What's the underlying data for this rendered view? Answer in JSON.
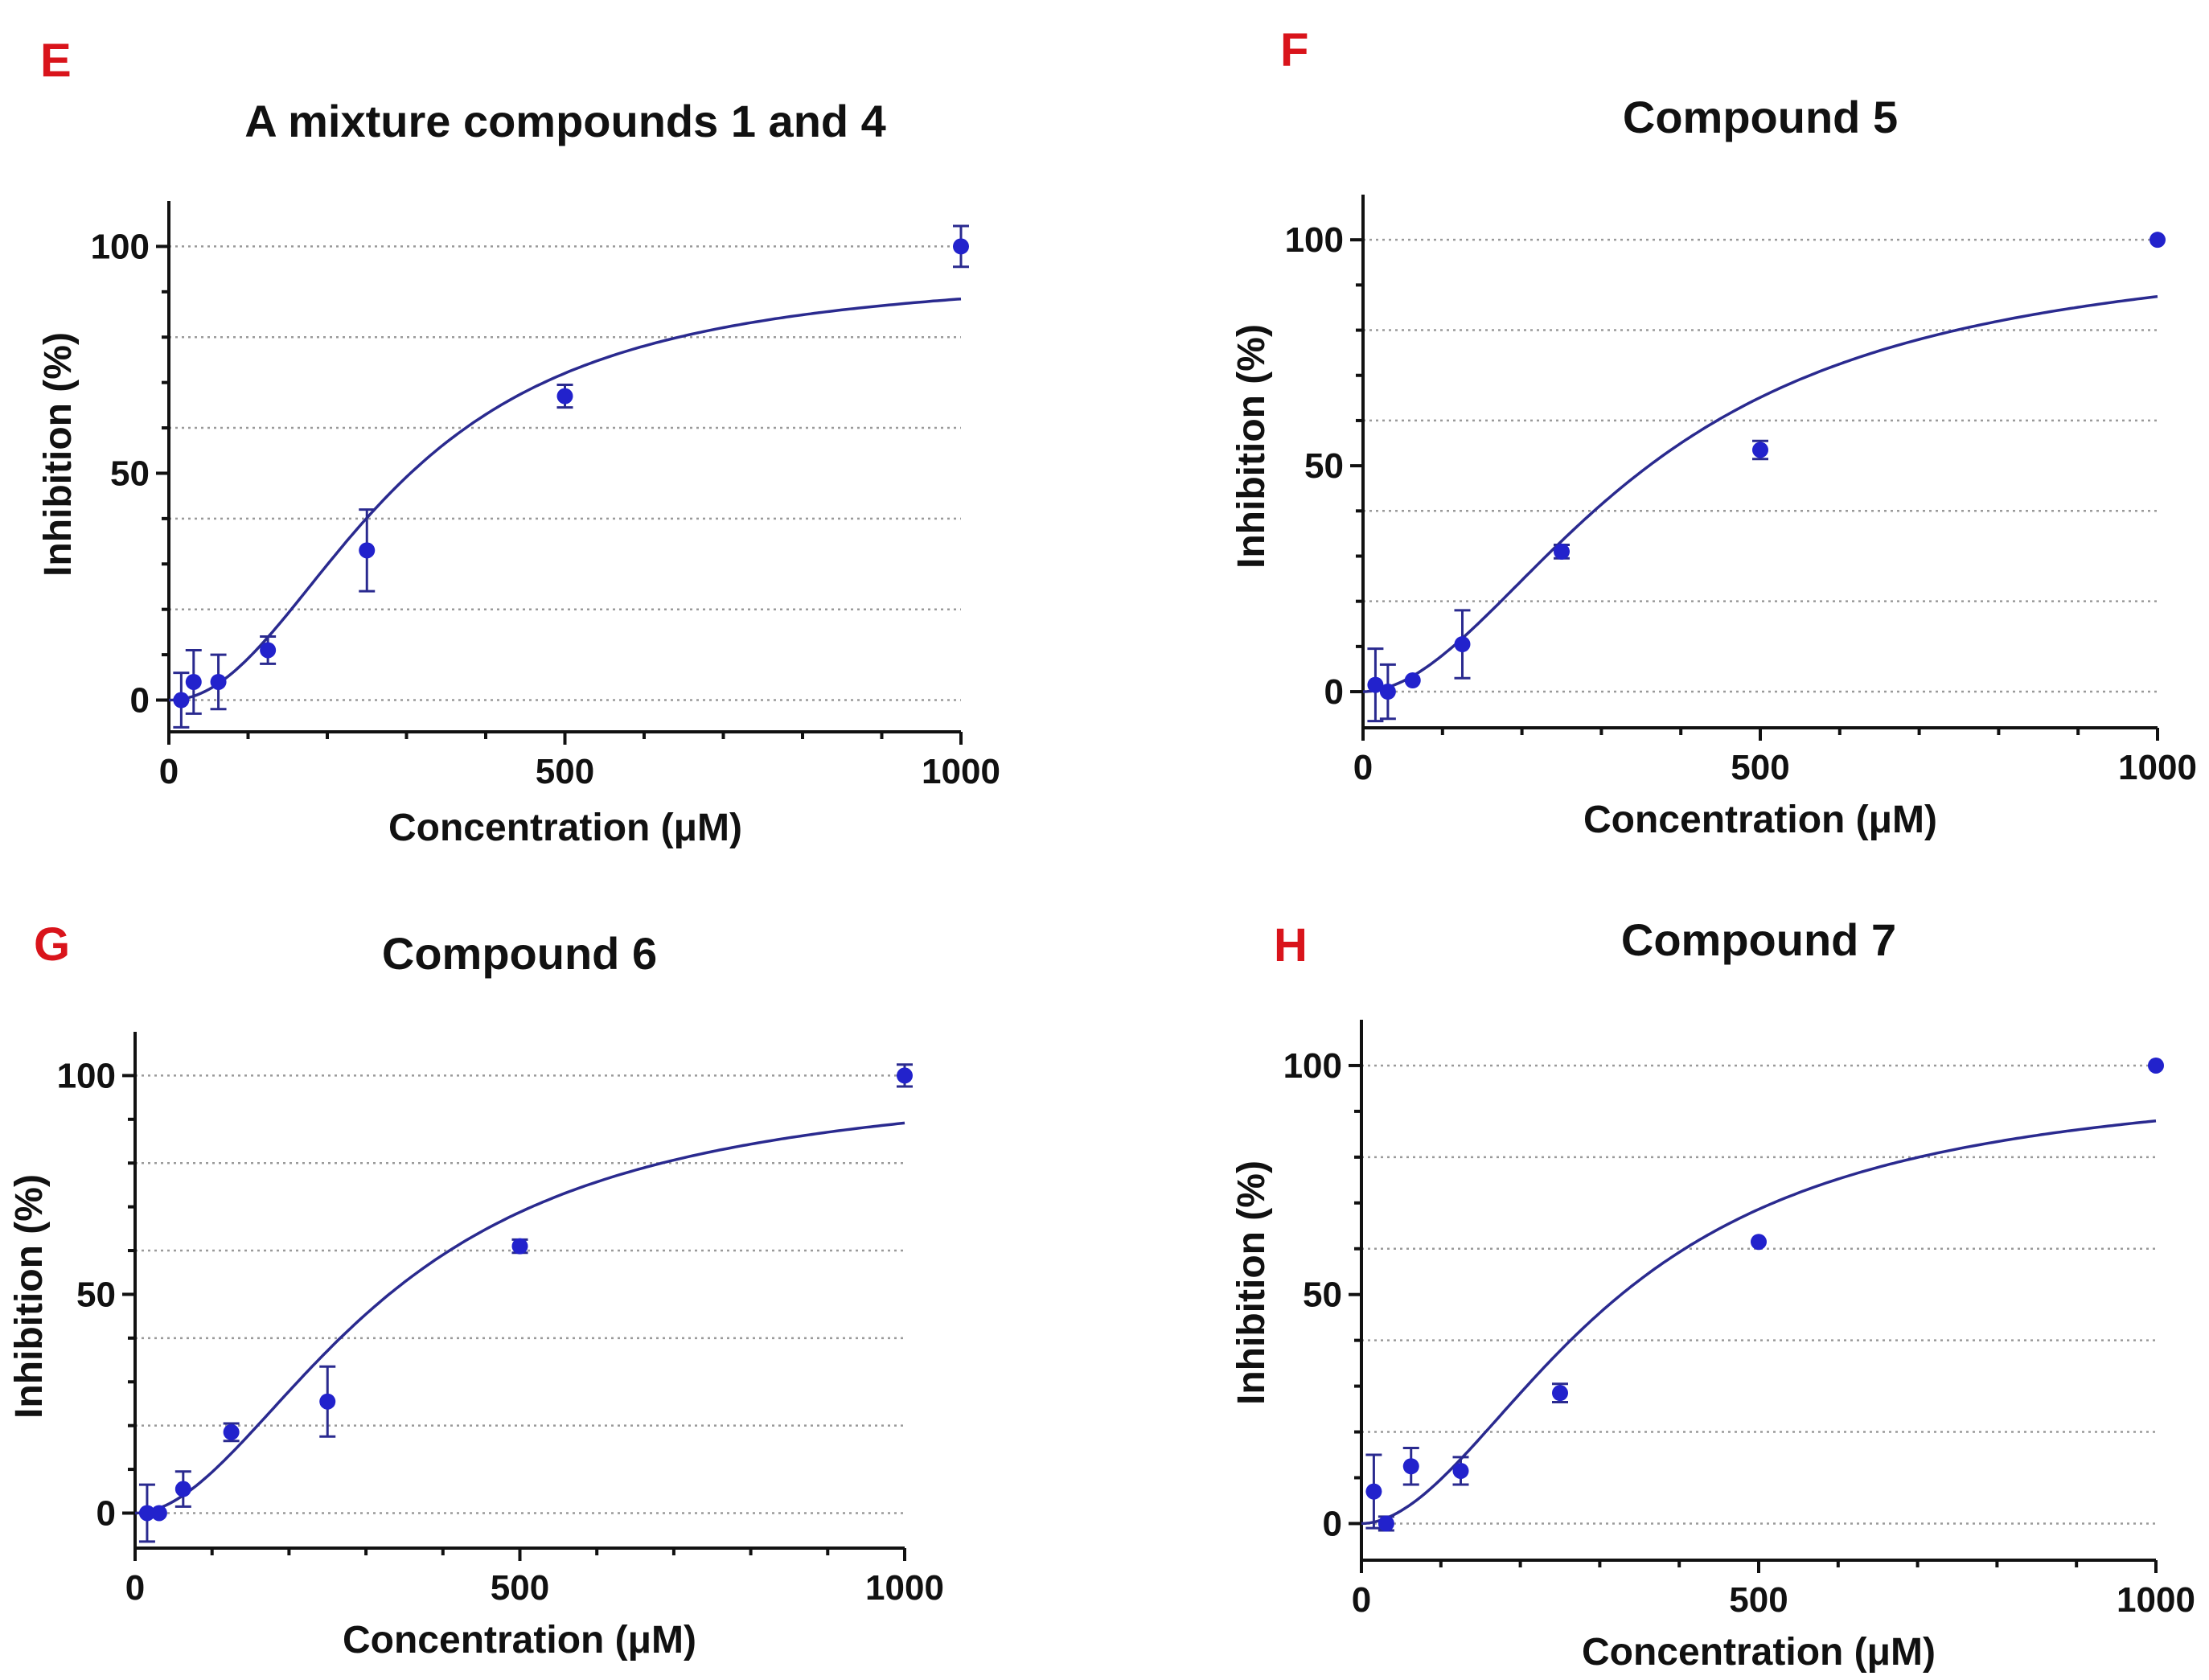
{
  "colors": {
    "letter": "#d9141b",
    "series": "#2222cc",
    "fit": "#2a2a8f",
    "grid": "#9a9a9a",
    "axis": "#111111"
  },
  "chart_data": [
    {
      "panel": "E",
      "type": "scatter",
      "title": "A mixture compounds 1 and 4",
      "xlabel": "Concentration (μM)",
      "ylabel": "Inhibition (%)",
      "xlim": [
        0,
        1000
      ],
      "ylim": [
        -7,
        110
      ],
      "xticks": [
        0,
        500,
        1000
      ],
      "yticks": [
        0,
        50,
        100
      ],
      "grid_y": [
        0,
        20,
        40,
        60,
        80,
        100
      ],
      "fit": {
        "model": "sigmoid",
        "top": 95,
        "ec50": 290,
        "hill": 2.1
      },
      "series": [
        {
          "name": "data",
          "x": [
            15.6,
            31.25,
            62.5,
            125,
            250,
            500,
            1000
          ],
          "y": [
            0,
            4,
            4,
            11,
            33,
            67,
            100
          ],
          "err": [
            6,
            7,
            6,
            3,
            9,
            2.5,
            4.5
          ]
        }
      ]
    },
    {
      "panel": "F",
      "type": "scatter",
      "title": "Compound 5",
      "xlabel": "Concentration (μM)",
      "ylabel": "Inhibition (%)",
      "xlim": [
        0,
        1000
      ],
      "ylim": [
        -8,
        110
      ],
      "xticks": [
        0,
        500,
        1000
      ],
      "yticks": [
        0,
        50,
        100
      ],
      "grid_y": [
        0,
        20,
        40,
        60,
        80,
        100
      ],
      "fit": {
        "model": "sigmoid",
        "top": 100,
        "ec50": 360,
        "hill": 1.9
      },
      "series": [
        {
          "name": "data",
          "x": [
            15.6,
            31.25,
            62.5,
            125,
            250,
            500,
            1000
          ],
          "y": [
            1.5,
            0,
            2.5,
            10.5,
            31,
            53.5,
            100
          ],
          "err": [
            8,
            6,
            0,
            7.5,
            1.5,
            2,
            0
          ]
        }
      ]
    },
    {
      "panel": "G",
      "type": "scatter",
      "title": "Compound 6",
      "xlabel": "Concentration (μM)",
      "ylabel": "Inhibition (%)",
      "xlim": [
        0,
        1000
      ],
      "ylim": [
        -8,
        110
      ],
      "xticks": [
        0,
        500,
        1000
      ],
      "yticks": [
        0,
        50,
        100
      ],
      "grid_y": [
        0,
        20,
        40,
        60,
        80,
        100
      ],
      "fit": {
        "model": "sigmoid",
        "top": 100,
        "ec50": 330,
        "hill": 1.9
      },
      "series": [
        {
          "name": "data",
          "x": [
            15.6,
            31.25,
            62.5,
            125,
            250,
            500,
            1000
          ],
          "y": [
            0,
            0,
            5.5,
            18.5,
            25.5,
            61,
            100
          ],
          "err": [
            6.5,
            0,
            4,
            2,
            8,
            1.5,
            2.5
          ]
        }
      ]
    },
    {
      "panel": "H",
      "type": "scatter",
      "title": "Compound 7",
      "xlabel": "Concentration (μM)",
      "ylabel": "Inhibition (%)",
      "xlim": [
        0,
        1000
      ],
      "ylim": [
        -8,
        110
      ],
      "xticks": [
        0,
        500,
        1000
      ],
      "yticks": [
        0,
        50,
        100
      ],
      "grid_y": [
        0,
        20,
        40,
        60,
        80,
        100
      ],
      "fit": {
        "model": "sigmoid",
        "top": 98,
        "ec50": 320,
        "hill": 1.9
      },
      "series": [
        {
          "name": "data",
          "x": [
            15.6,
            31.25,
            62.5,
            125,
            250,
            500,
            1000
          ],
          "y": [
            7,
            0,
            12.5,
            11.5,
            28.5,
            61.5,
            100
          ],
          "err": [
            8,
            1.5,
            4,
            3,
            2,
            0,
            0
          ]
        }
      ]
    }
  ]
}
